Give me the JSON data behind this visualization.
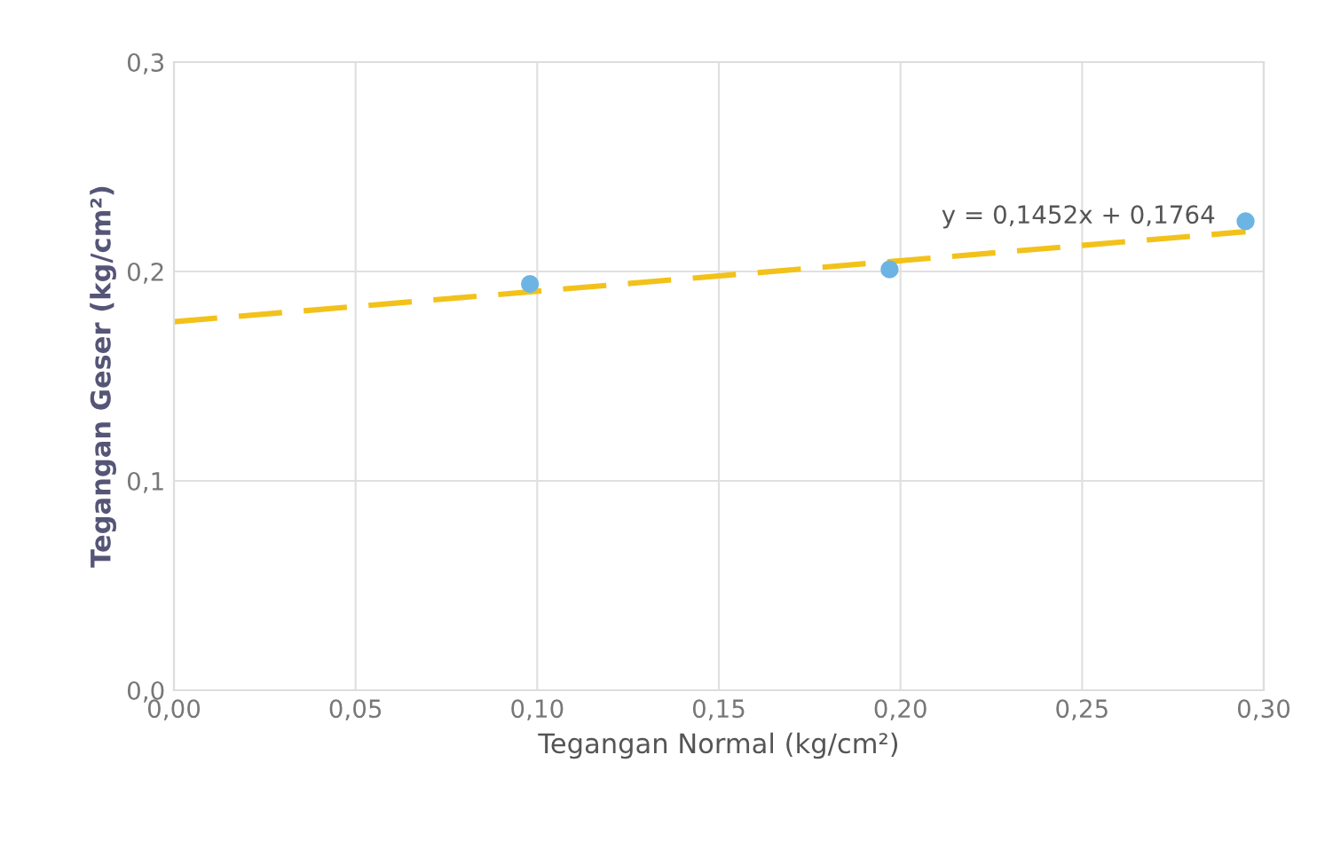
{
  "chart_data": {
    "type": "scatter",
    "xlabel": "Tegangan Normal (kg/cm²)",
    "ylabel": "Tegangan Geser (kg/cm²)",
    "series": [
      {
        "color": "#6cb4e4",
        "marker": "circle",
        "x": [
          0.098,
          0.197,
          0.295
        ],
        "values": [
          0.194,
          0.201,
          0.224
        ]
      },
      {
        "type": "line",
        "color": "#f2c21b",
        "line_style": "dashed",
        "marker": "none",
        "x": [
          0,
          0.295
        ],
        "values": [
          0.176,
          0.219
        ]
      }
    ],
    "annotations": [
      "y = 0,1452x + 0,1764"
    ],
    "xlim": [
      0,
      0.3
    ],
    "ylim": [
      0,
      0.3
    ],
    "xticks": [
      {
        "value": 0,
        "label": "0,00"
      },
      {
        "value": 0.05,
        "label": "0,05"
      },
      {
        "value": 0.1,
        "label": "0,10"
      },
      {
        "value": 0.15,
        "label": "0,15"
      },
      {
        "value": 0.2,
        "label": "0,20"
      },
      {
        "value": 0.25,
        "label": "0,25"
      },
      {
        "value": 0.3,
        "label": "0,30"
      }
    ],
    "yticks": [
      {
        "value": 0,
        "label": "0,0"
      },
      {
        "value": 0.1,
        "label": "0,1"
      },
      {
        "value": 0.2,
        "label": "0,2"
      },
      {
        "value": 0.3,
        "label": "0,3"
      }
    ],
    "grid": true
  }
}
